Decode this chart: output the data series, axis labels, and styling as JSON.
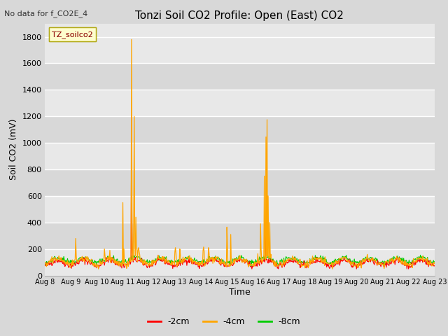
{
  "title": "Tonzi Soil CO2 Profile: Open (East) CO2",
  "no_data_label": "No data for f_CO2E_4",
  "ylabel": "Soil CO2 (mV)",
  "xlabel": "Time",
  "legend_label": "TZ_soilco2",
  "series_labels": [
    "-2cm",
    "-4cm",
    "-8cm"
  ],
  "series_colors": [
    "#ff0000",
    "#ffa500",
    "#00cc00"
  ],
  "ylim": [
    0,
    1900
  ],
  "yticks": [
    0,
    200,
    400,
    600,
    800,
    1000,
    1200,
    1400,
    1600,
    1800
  ],
  "bg_color": "#d8d8d8",
  "plot_bg_color": "#e8e8e8",
  "band_color_light": "#e8e8e8",
  "band_color_dark": "#d8d8d8",
  "grid_color": "#ffffff",
  "n_days": 16,
  "start_day": 8,
  "end_day": 23,
  "points_per_day": 48,
  "figsize": [
    6.4,
    4.8
  ],
  "dpi": 100
}
